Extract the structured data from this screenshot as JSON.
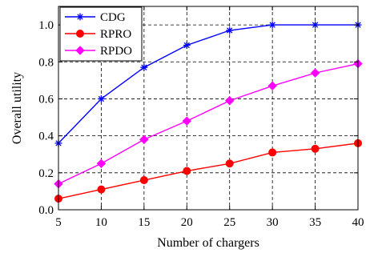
{
  "chart_data": {
    "type": "line",
    "xlabel": "Number of chargers",
    "ylabel": "Overall utility",
    "x": [
      5,
      10,
      15,
      20,
      25,
      30,
      35,
      40
    ],
    "xlim": [
      5,
      40
    ],
    "ylim": [
      0,
      1.1
    ],
    "xticks": [
      "5",
      "10",
      "15",
      "20",
      "25",
      "30",
      "35",
      "40"
    ],
    "yticks": [
      "0.0",
      "0.2",
      "0.4",
      "0.6",
      "0.8",
      "1.0"
    ],
    "grid": true,
    "legend_position": "top-left",
    "series": [
      {
        "name": "CDG",
        "color": "#0000ff",
        "marker": "star",
        "values": [
          0.36,
          0.6,
          0.77,
          0.89,
          0.97,
          1.0,
          1.0,
          1.0
        ]
      },
      {
        "name": "RPRO",
        "color": "#ff0000",
        "marker": "circle",
        "values": [
          0.06,
          0.11,
          0.16,
          0.21,
          0.25,
          0.31,
          0.33,
          0.36
        ]
      },
      {
        "name": "RPDO",
        "color": "#ff00ff",
        "marker": "diamond",
        "values": [
          0.14,
          0.25,
          0.38,
          0.48,
          0.59,
          0.67,
          0.74,
          0.79
        ]
      }
    ]
  }
}
